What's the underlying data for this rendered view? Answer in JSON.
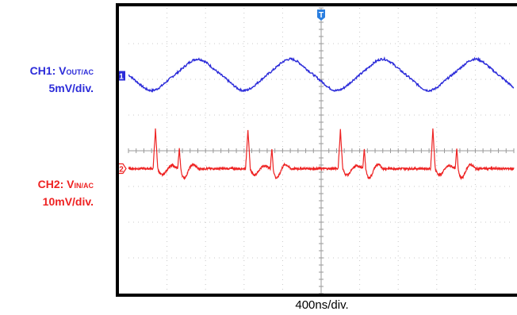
{
  "chart_data": {
    "type": "line",
    "x_unit": "div",
    "y_unit": "div",
    "divisions": {
      "x": 10,
      "y": 8
    },
    "trigger_marker": "T",
    "timebase_label": "400ns/div.",
    "series": [
      {
        "name": "CH1",
        "label_prefix": "CH1: V",
        "label_sub": "OUT/AC",
        "scale_label": "5mV/div.",
        "channel_marker": "1",
        "color": "#2b2bd9",
        "offset_div": 6.1,
        "waveform": "triangular-sine",
        "period_div": 2.4,
        "peak_to_peak_div": 1.1,
        "first_peak_x_div": 1.8
      },
      {
        "name": "CH2",
        "label_prefix": "CH2: V",
        "label_sub": "IN/AC",
        "scale_label": "10mV/div.",
        "channel_marker": "2",
        "color": "#ee2222",
        "offset_div": 3.5,
        "waveform": "switching-spikes",
        "period_div": 2.4,
        "spike_height_div": 1.1,
        "first_spike_x_div": 0.7
      }
    ]
  }
}
